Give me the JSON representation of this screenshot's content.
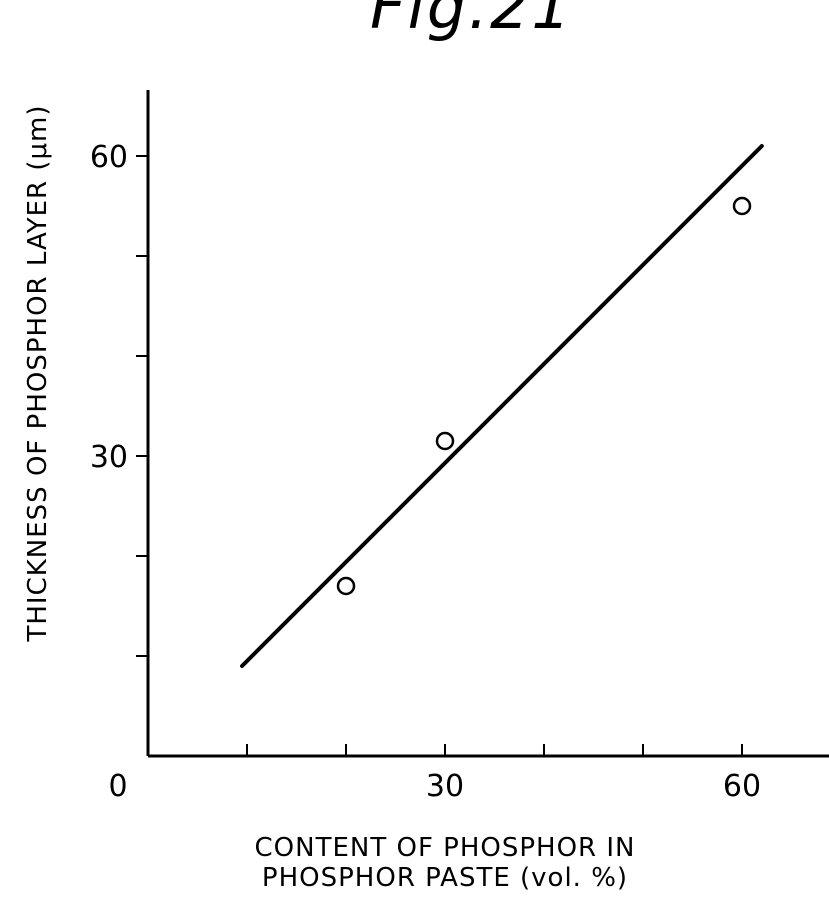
{
  "chart_data": {
    "type": "scatter",
    "title": "Fig.21",
    "xlabel_lines": [
      "CONTENT OF PHOSPHOR IN",
      "PHOSPHOR PASTE (vol. %)"
    ],
    "ylabel": "THICKNESS OF PHOSPHOR LAYER (μm)",
    "origin_label": "0",
    "xlim": [
      0,
      68
    ],
    "ylim": [
      0,
      66
    ],
    "x_ticks": [
      10,
      20,
      30,
      40,
      50,
      60
    ],
    "x_tick_labels": [
      {
        "value": 30,
        "label": "30"
      },
      {
        "value": 60,
        "label": "60"
      }
    ],
    "y_ticks": [
      10,
      20,
      30,
      40,
      50,
      60
    ],
    "y_tick_labels": [
      {
        "value": 30,
        "label": "30"
      },
      {
        "value": 60,
        "label": "60"
      }
    ],
    "points": [
      {
        "x": 20,
        "y": 17
      },
      {
        "x": 30,
        "y": 31.5
      },
      {
        "x": 60,
        "y": 55
      }
    ],
    "fit_line": [
      {
        "x": 9.5,
        "y": 9
      },
      {
        "x": 62,
        "y": 61
      }
    ]
  }
}
